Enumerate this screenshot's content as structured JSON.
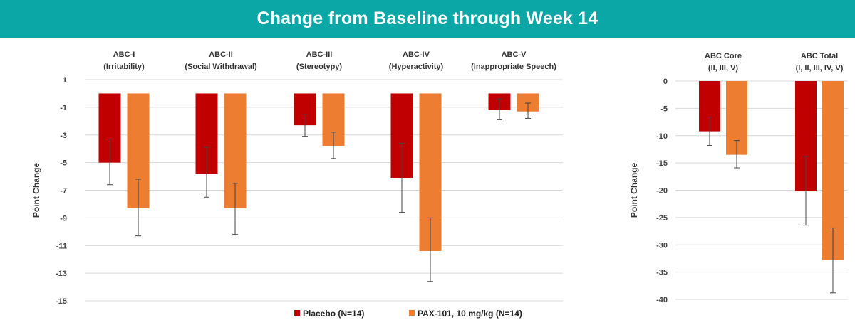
{
  "title": "Change from Baseline through Week 14",
  "chart_data": [
    {
      "type": "bar",
      "title": "",
      "xlabel": "",
      "ylabel": "Point Change",
      "ylim": [
        -15,
        1
      ],
      "yticks": [
        1,
        -1,
        -3,
        -5,
        -7,
        -9,
        -11,
        -13,
        -15
      ],
      "categories": [
        [
          "ABC-I",
          "(Irritability)"
        ],
        [
          "ABC-II",
          "(Social Withdrawal)"
        ],
        [
          "ABC-III",
          "(Stereotypy)"
        ],
        [
          "ABC-IV",
          "(Hyperactivity)"
        ],
        [
          "ABC-V",
          "(Inappropriate Speech)"
        ]
      ],
      "series": [
        {
          "name": "Placebo (N=14)",
          "color": "#c00000",
          "values": [
            -5.0,
            -5.8,
            -2.3,
            -6.1,
            -1.2
          ],
          "err_low": [
            -6.6,
            -7.5,
            -3.1,
            -8.6,
            -1.9
          ],
          "err_high": [
            -3.3,
            -3.9,
            -1.5,
            -3.6,
            -0.4
          ]
        },
        {
          "name": "PAX-101, 10 mg/kg (N=14)",
          "color": "#ed7d31",
          "values": [
            -8.3,
            -8.3,
            -3.8,
            -11.4,
            -1.3
          ],
          "err_low": [
            -10.3,
            -10.2,
            -4.7,
            -13.6,
            -1.8
          ],
          "err_high": [
            -6.2,
            -6.5,
            -2.8,
            -9.0,
            -0.7
          ]
        }
      ]
    },
    {
      "type": "bar",
      "title": "",
      "xlabel": "",
      "ylabel": "Point Change",
      "ylim": [
        -40,
        0
      ],
      "yticks": [
        0,
        -5,
        -10,
        -15,
        -20,
        -25,
        -30,
        -35,
        -40
      ],
      "categories": [
        [
          "ABC Core",
          "(II, III, V)"
        ],
        [
          "ABC Total",
          "(I, II, III, IV, V)"
        ]
      ],
      "series": [
        {
          "name": "Placebo (N=14)",
          "color": "#c00000",
          "values": [
            -9.2,
            -20.2
          ],
          "err_low": [
            -11.8,
            -26.4
          ],
          "err_high": [
            -6.6,
            -13.8
          ]
        },
        {
          "name": "PAX-101, 10 mg/kg (N=14)",
          "color": "#ed7d31",
          "values": [
            -13.5,
            -32.8
          ],
          "err_low": [
            -15.9,
            -38.8
          ],
          "err_high": [
            -10.9,
            -26.9
          ]
        }
      ]
    }
  ],
  "legend": [
    {
      "label": "Placebo (N=14)",
      "color": "#c00000"
    },
    {
      "label": "PAX-101, 10 mg/kg (N=14)",
      "color": "#ed7d31"
    }
  ]
}
